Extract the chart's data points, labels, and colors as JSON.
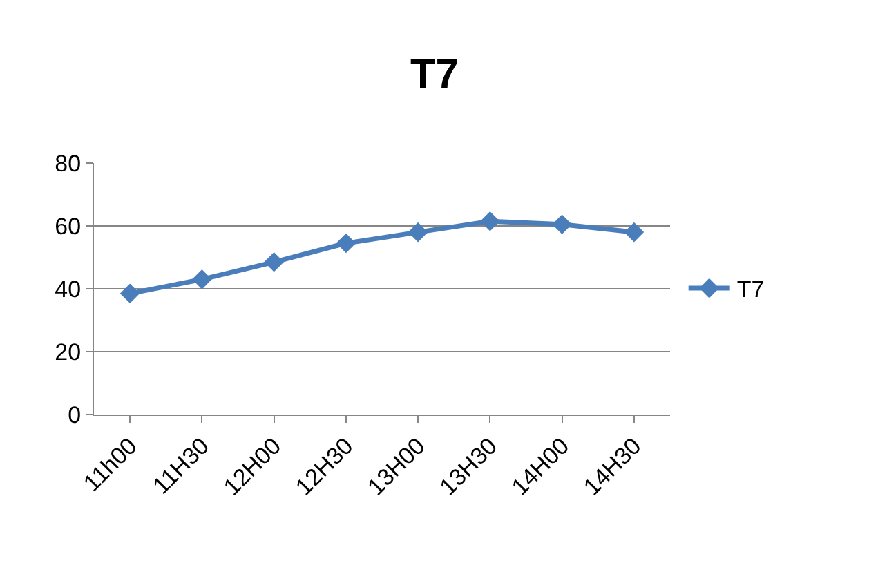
{
  "chart_data": {
    "type": "line",
    "title": "T7",
    "categories": [
      "11h00",
      "11H30",
      "12H00",
      "12H30",
      "13H00",
      "13H30",
      "14H00",
      "14H30"
    ],
    "series": [
      {
        "name": "T7",
        "color": "#4a7ebb",
        "values": [
          38.5,
          43,
          48.5,
          54.5,
          58,
          61.5,
          60.5,
          58
        ]
      }
    ],
    "ylim": [
      0,
      80
    ],
    "yticks": [
      0,
      20,
      40,
      60,
      80
    ],
    "grid": "y",
    "legend": "right",
    "marker": "diamond",
    "line_style": "solid"
  }
}
